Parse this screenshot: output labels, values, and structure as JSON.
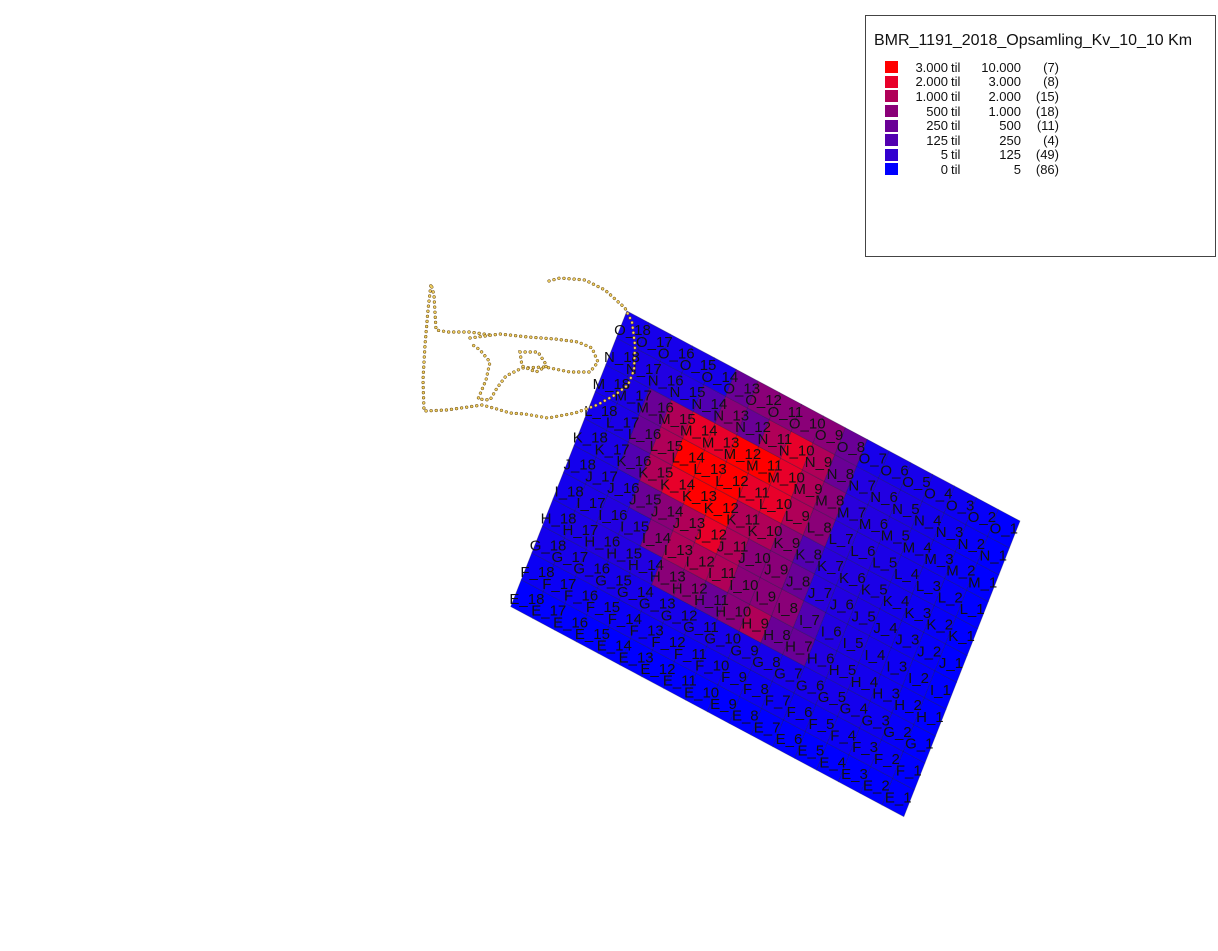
{
  "legend": {
    "title": "BMR_1191_2018_Opsamling_Kv_10_10 Km",
    "classes": [
      {
        "lo": "3.000",
        "til": "til",
        "hi": "10.000",
        "count": "(7)",
        "color": "#ff0000"
      },
      {
        "lo": "2.000",
        "til": "til",
        "hi": "3.000",
        "count": "(8)",
        "color": "#e8002a"
      },
      {
        "lo": "1.000",
        "til": "til",
        "hi": "2.000",
        "count": "(15)",
        "color": "#b00058"
      },
      {
        "lo": "500",
        "til": "til",
        "hi": "1.000",
        "count": "(18)",
        "color": "#8a0078"
      },
      {
        "lo": "250",
        "til": "til",
        "hi": "500",
        "count": "(11)",
        "color": "#6a0096"
      },
      {
        "lo": "125",
        "til": "til",
        "hi": "250",
        "count": "(4)",
        "color": "#5200b0"
      },
      {
        "lo": "5",
        "til": "til",
        "hi": "125",
        "count": "(49)",
        "color": "#3200d0"
      },
      {
        "lo": "0",
        "til": "til",
        "hi": "5",
        "count": "(86)",
        "color": "#0000ff"
      }
    ]
  },
  "grid": {
    "rows": [
      "E",
      "F",
      "G",
      "H",
      "I",
      "J",
      "K",
      "L",
      "M",
      "N",
      "O"
    ],
    "columns": 18,
    "high_value_class_by_cell": {
      "K_13": 0,
      "L_14": 0,
      "L_13": 0,
      "M_12": 0,
      "L_12": 0,
      "K_12": 0,
      "M_11": 0,
      "M_13": 1,
      "M_14": 1,
      "K_14": 1,
      "J_12": 1,
      "N_10": 1,
      "L_11": 1,
      "M_10": 1,
      "L_10": 1,
      "I_12": 2,
      "J_13": 2,
      "K_11": 2,
      "L_9": 2,
      "N_11": 2,
      "N_9": 2,
      "M_9": 2,
      "K_10": 2,
      "J_11": 2,
      "I_11": 2,
      "H_9": 2,
      "L_15": 2,
      "M_15": 2,
      "I_13": 2,
      "K_15": 2,
      "I_10": 3,
      "J_10": 3,
      "H_10": 3,
      "H_12": 3,
      "H_13": 3,
      "I_14": 3,
      "J_14": 3,
      "K_9": 3,
      "N_13": 3,
      "O_11": 3,
      "O_12": 3,
      "O_10": 3,
      "O_9": 3,
      "M_8": 3,
      "L_8": 3,
      "J_9": 3,
      "I_9": 3,
      "I_8": 3,
      "H_11": 4,
      "H_8": 4,
      "N_12": 4,
      "O_13": 4,
      "N_8": 4,
      "J_8": 4,
      "L_16": 4,
      "M_16": 4,
      "J_15": 4,
      "O_8": 4,
      "H_7": 4,
      "N_14": 5,
      "K_8": 5,
      "I_7": 5,
      "K_16": 5
    },
    "outline_style": {
      "color": "#f0d060",
      "style": "dotted"
    }
  }
}
